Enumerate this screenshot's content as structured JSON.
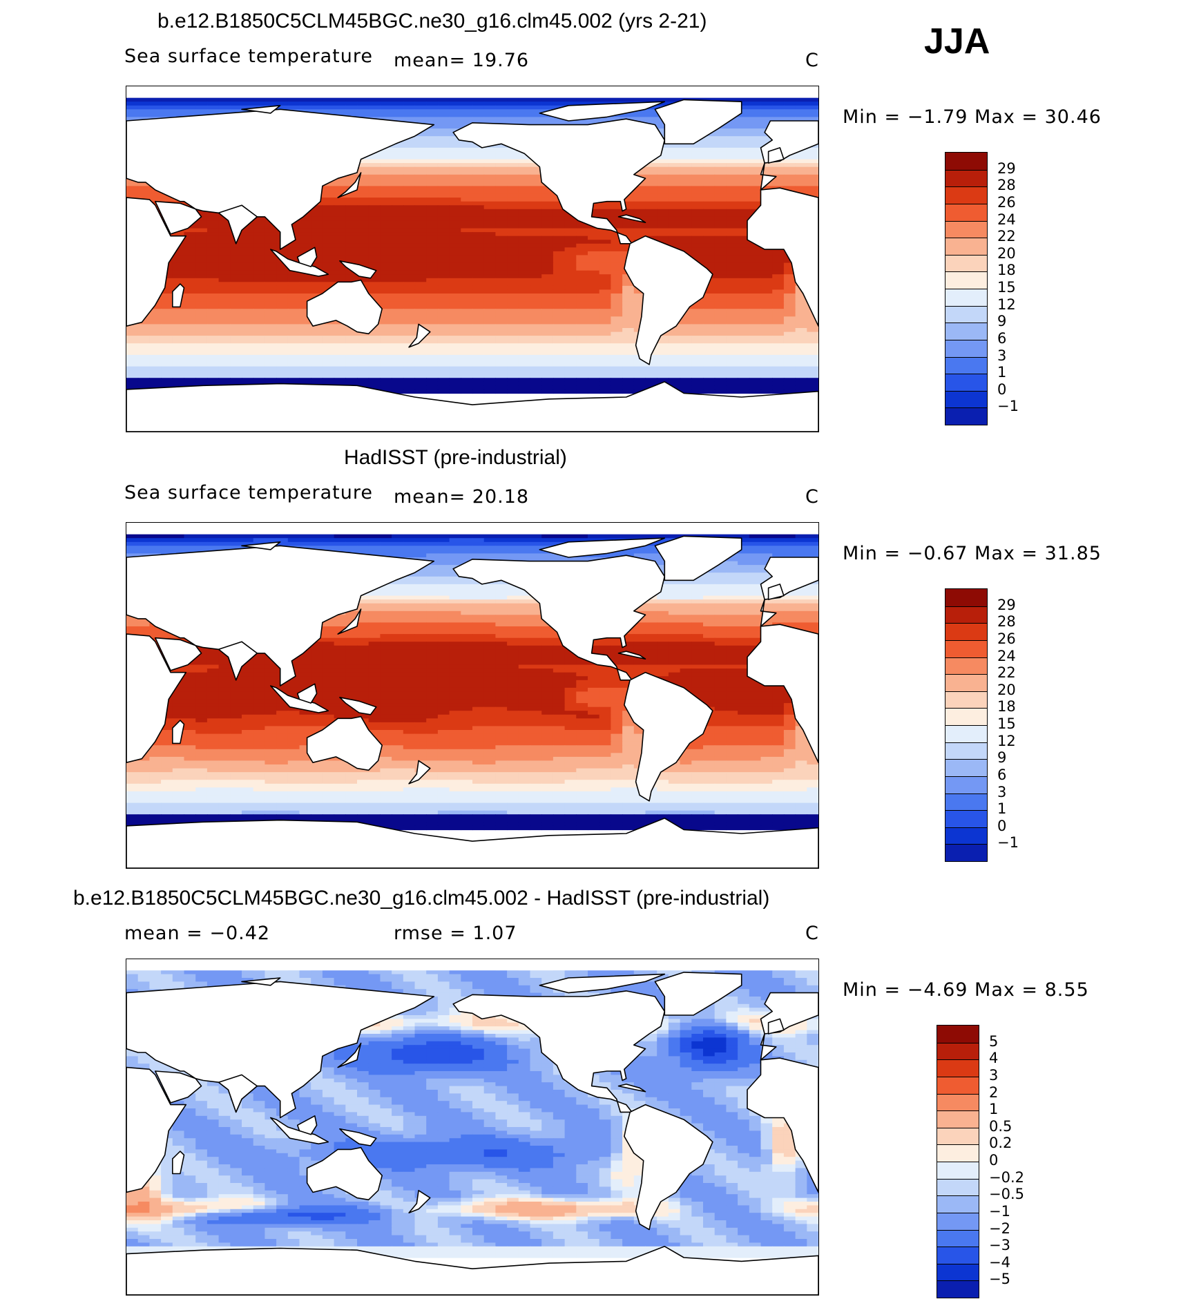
{
  "season": "JJA",
  "palette_full": [
    "#08088c",
    "#0a1fb0",
    "#0c35d2",
    "#2855e8",
    "#4a78f0",
    "#7498f4",
    "#9bb8f6",
    "#c3d7f9",
    "#e3eefb",
    "#fdeee0",
    "#fbd3bb",
    "#f9b291",
    "#f68a61",
    "#ef5c31",
    "#db3a14",
    "#b81f0a",
    "#8e0b04"
  ],
  "palette_diff": [
    "#08088c",
    "#0a1fb0",
    "#0c35d2",
    "#2855e8",
    "#4a78f0",
    "#7498f4",
    "#9bb8f6",
    "#c3d7f9",
    "#e3eefb",
    "#fdeee0",
    "#fbd3bb",
    "#f9b291",
    "#f68a61",
    "#ef5c31",
    "#db3a14",
    "#b81f0a",
    "#8e0b04"
  ],
  "panels": [
    {
      "title": "b.e12.B1850C5CLM45BGC.ne30_g16.clm45.002 (yrs 2-21)",
      "left_label": "Sea surface temperature",
      "stat1": "mean=   19.76",
      "stat2": "",
      "units": "C",
      "minmax": "Min =   −1.79  Max =   30.46",
      "ticks": [
        "29",
        "28",
        "26",
        "24",
        "22",
        "20",
        "18",
        "15",
        "12",
        "9",
        "6",
        "3",
        "1",
        "0",
        "−1"
      ],
      "mode": "model"
    },
    {
      "title": "HadISST (pre-industrial)",
      "left_label": "Sea surface temperature",
      "stat1": "mean=   20.18",
      "stat2": "",
      "units": "C",
      "minmax": "Min =   −0.67  Max =   31.85",
      "ticks": [
        "29",
        "28",
        "26",
        "24",
        "22",
        "20",
        "18",
        "15",
        "12",
        "9",
        "6",
        "3",
        "1",
        "0",
        "−1"
      ],
      "mode": "obs"
    },
    {
      "title": "b.e12.B1850C5CLM45BGC.ne30_g16.clm45.002 - HadISST (pre-industrial)",
      "left_label": "mean =   −0.42",
      "stat1": "rmse =    1.07",
      "stat2": "",
      "units": "C",
      "minmax": "Min =   −4.69  Max =    8.55",
      "ticks": [
        "5",
        "4",
        "3",
        "2",
        "1",
        "0.5",
        "0.2",
        "0",
        "−0.2",
        "−0.5",
        "−1",
        "−2",
        "−3",
        "−4",
        "−5"
      ],
      "mode": "diff"
    }
  ]
}
